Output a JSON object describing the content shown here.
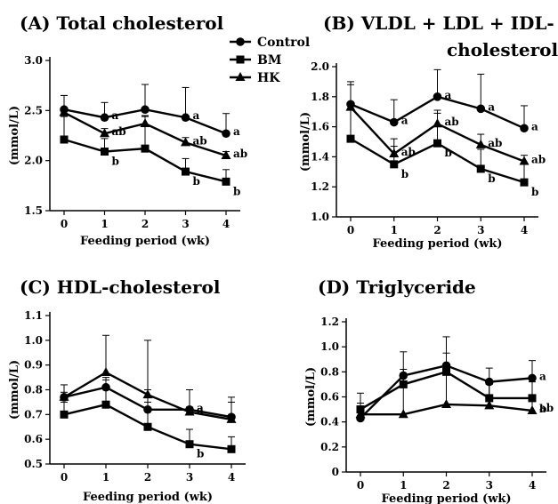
{
  "legend": {
    "entries": [
      {
        "name": "Control",
        "marker": "circle"
      },
      {
        "name": "BM",
        "marker": "square"
      },
      {
        "name": "HK",
        "marker": "triangle"
      }
    ]
  },
  "chart_data": [
    {
      "type": "line",
      "title_lines": [
        "(A) Total cholesterol"
      ],
      "xlabel": "Feeding period (wk)",
      "ylabel": "(mmol/L)",
      "x": [
        0,
        1,
        2,
        3,
        4
      ],
      "x_ticks": [
        "0",
        "1",
        "2",
        "3",
        "4"
      ],
      "ylim": [
        1.5,
        3.0
      ],
      "y_ticks": [
        "1.5",
        "2.0",
        "2.5",
        "3.0"
      ],
      "grid": false,
      "series": [
        {
          "name": "Control",
          "marker": "circle",
          "values": [
            2.51,
            2.43,
            2.51,
            2.43,
            2.27
          ],
          "err": [
            0.14,
            0.15,
            0.25,
            0.3,
            0.2
          ]
        },
        {
          "name": "BM",
          "marker": "square",
          "values": [
            2.21,
            2.09,
            2.12,
            1.89,
            1.79
          ],
          "err": [
            0.23,
            0.13,
            0.32,
            0.13,
            0.12
          ]
        },
        {
          "name": "HK",
          "marker": "triangle",
          "values": [
            2.48,
            2.27,
            2.37,
            2.18,
            2.05
          ],
          "err": [
            0.17,
            0.05,
            0.08,
            0.05,
            0.04
          ]
        }
      ],
      "annotations": [
        {
          "x": 1,
          "series": "Control",
          "text": "a"
        },
        {
          "x": 3,
          "series": "Control",
          "text": "a"
        },
        {
          "x": 4,
          "series": "Control",
          "text": "a"
        },
        {
          "x": 1,
          "series": "HK",
          "text": "ab"
        },
        {
          "x": 3,
          "series": "HK",
          "text": "ab"
        },
        {
          "x": 4,
          "series": "HK",
          "text": "ab"
        },
        {
          "x": 1,
          "series": "BM",
          "text": "b"
        },
        {
          "x": 3,
          "series": "BM",
          "text": "b"
        },
        {
          "x": 4,
          "series": "BM",
          "text": "b"
        }
      ]
    },
    {
      "type": "line",
      "title_lines": [
        "(B) VLDL + LDL + IDL-",
        "cholesterol"
      ],
      "xlabel": "Feeding period (wk)",
      "ylabel": "(mmol/L)",
      "x": [
        0,
        1,
        2,
        3,
        4
      ],
      "x_ticks": [
        "0",
        "1",
        "2",
        "3",
        "4"
      ],
      "ylim": [
        1.0,
        2.0
      ],
      "y_ticks": [
        "1.0",
        "1.2",
        "1.4",
        "1.6",
        "1.8",
        "2.0"
      ],
      "grid": false,
      "series": [
        {
          "name": "Control",
          "marker": "circle",
          "values": [
            1.75,
            1.63,
            1.8,
            1.72,
            1.59
          ],
          "err": [
            0.13,
            0.15,
            0.18,
            0.23,
            0.15
          ]
        },
        {
          "name": "BM",
          "marker": "square",
          "values": [
            1.52,
            1.35,
            1.49,
            1.32,
            1.23
          ],
          "err": [
            0.19,
            0.12,
            0.2,
            0.13,
            0.13
          ]
        },
        {
          "name": "HK",
          "marker": "triangle",
          "values": [
            1.73,
            1.42,
            1.62,
            1.48,
            1.37
          ],
          "err": [
            0.17,
            0.1,
            0.09,
            0.07,
            0.04
          ]
        }
      ],
      "annotations": [
        {
          "x": 1,
          "series": "Control",
          "text": "a"
        },
        {
          "x": 2,
          "series": "Control",
          "text": "a"
        },
        {
          "x": 3,
          "series": "Control",
          "text": "a"
        },
        {
          "x": 4,
          "series": "Control",
          "text": "a"
        },
        {
          "x": 1,
          "series": "HK",
          "text": "ab"
        },
        {
          "x": 2,
          "series": "HK",
          "text": "ab"
        },
        {
          "x": 3,
          "series": "HK",
          "text": "ab"
        },
        {
          "x": 4,
          "series": "HK",
          "text": "ab"
        },
        {
          "x": 1,
          "series": "BM",
          "text": "b"
        },
        {
          "x": 2,
          "series": "BM",
          "text": "b"
        },
        {
          "x": 3,
          "series": "BM",
          "text": "b"
        },
        {
          "x": 4,
          "series": "BM",
          "text": "b"
        }
      ]
    },
    {
      "type": "line",
      "title_lines": [
        "(C) HDL-cholesterol"
      ],
      "xlabel": "Feeding period (wk)",
      "ylabel": "(mmol/L)",
      "x": [
        0,
        1,
        2,
        3,
        4
      ],
      "x_ticks": [
        "0",
        "1",
        "2",
        "3",
        "4"
      ],
      "ylim": [
        0.5,
        1.1
      ],
      "y_ticks": [
        "0.5",
        "0.6",
        "0.7",
        "0.8",
        "0.9",
        "1.0",
        "1.1"
      ],
      "grid": false,
      "series": [
        {
          "name": "Control",
          "marker": "circle",
          "values": [
            0.77,
            0.81,
            0.72,
            0.72,
            0.69
          ],
          "err": [
            0.05,
            0.04,
            0.08,
            0.08,
            0.06
          ]
        },
        {
          "name": "BM",
          "marker": "square",
          "values": [
            0.7,
            0.74,
            0.65,
            0.58,
            0.56
          ],
          "err": [
            0.05,
            0.1,
            0.1,
            0.06,
            0.05
          ]
        },
        {
          "name": "HK",
          "marker": "triangle",
          "values": [
            0.77,
            0.87,
            0.78,
            0.71,
            0.68
          ],
          "err": [
            0.02,
            0.15,
            0.22,
            0.02,
            0.09
          ]
        }
      ],
      "annotations": [
        {
          "x": 3,
          "series": "Control",
          "text": "a"
        },
        {
          "x": 3,
          "series": "HK",
          "text": "a"
        },
        {
          "x": 3,
          "series": "BM",
          "text": "b"
        }
      ]
    },
    {
      "type": "line",
      "title_lines": [
        "(D) Triglyceride"
      ],
      "xlabel": "Feeding period (wk)",
      "ylabel": "(mmol/L)",
      "x": [
        0,
        1,
        2,
        3,
        4
      ],
      "x_ticks": [
        "0",
        "1",
        "2",
        "3",
        "4"
      ],
      "ylim": [
        0,
        1.2
      ],
      "y_ticks": [
        "0",
        "0.2",
        "0.4",
        "0.6",
        "0.8",
        "1.0",
        "1.2"
      ],
      "grid": false,
      "series": [
        {
          "name": "Control",
          "marker": "circle",
          "values": [
            0.43,
            0.77,
            0.85,
            0.72,
            0.75
          ],
          "err": [
            0.12,
            0.19,
            0.23,
            0.11,
            0.14
          ]
        },
        {
          "name": "BM",
          "marker": "square",
          "values": [
            0.5,
            0.7,
            0.8,
            0.59,
            0.59
          ],
          "err": [
            0.13,
            0.12,
            0.15,
            0.13,
            0.13
          ]
        },
        {
          "name": "HK",
          "marker": "triangle",
          "values": [
            0.46,
            0.46,
            0.54,
            0.53,
            0.49
          ],
          "err": [
            0.06,
            0.31,
            0.3,
            0.17,
            0.09
          ]
        }
      ],
      "annotations": [
        {
          "x": 4,
          "series": "Control",
          "text": "a"
        },
        {
          "x": 4,
          "series": "BM",
          "text": "ab"
        },
        {
          "x": 4,
          "series": "HK",
          "text": "b"
        }
      ]
    }
  ]
}
